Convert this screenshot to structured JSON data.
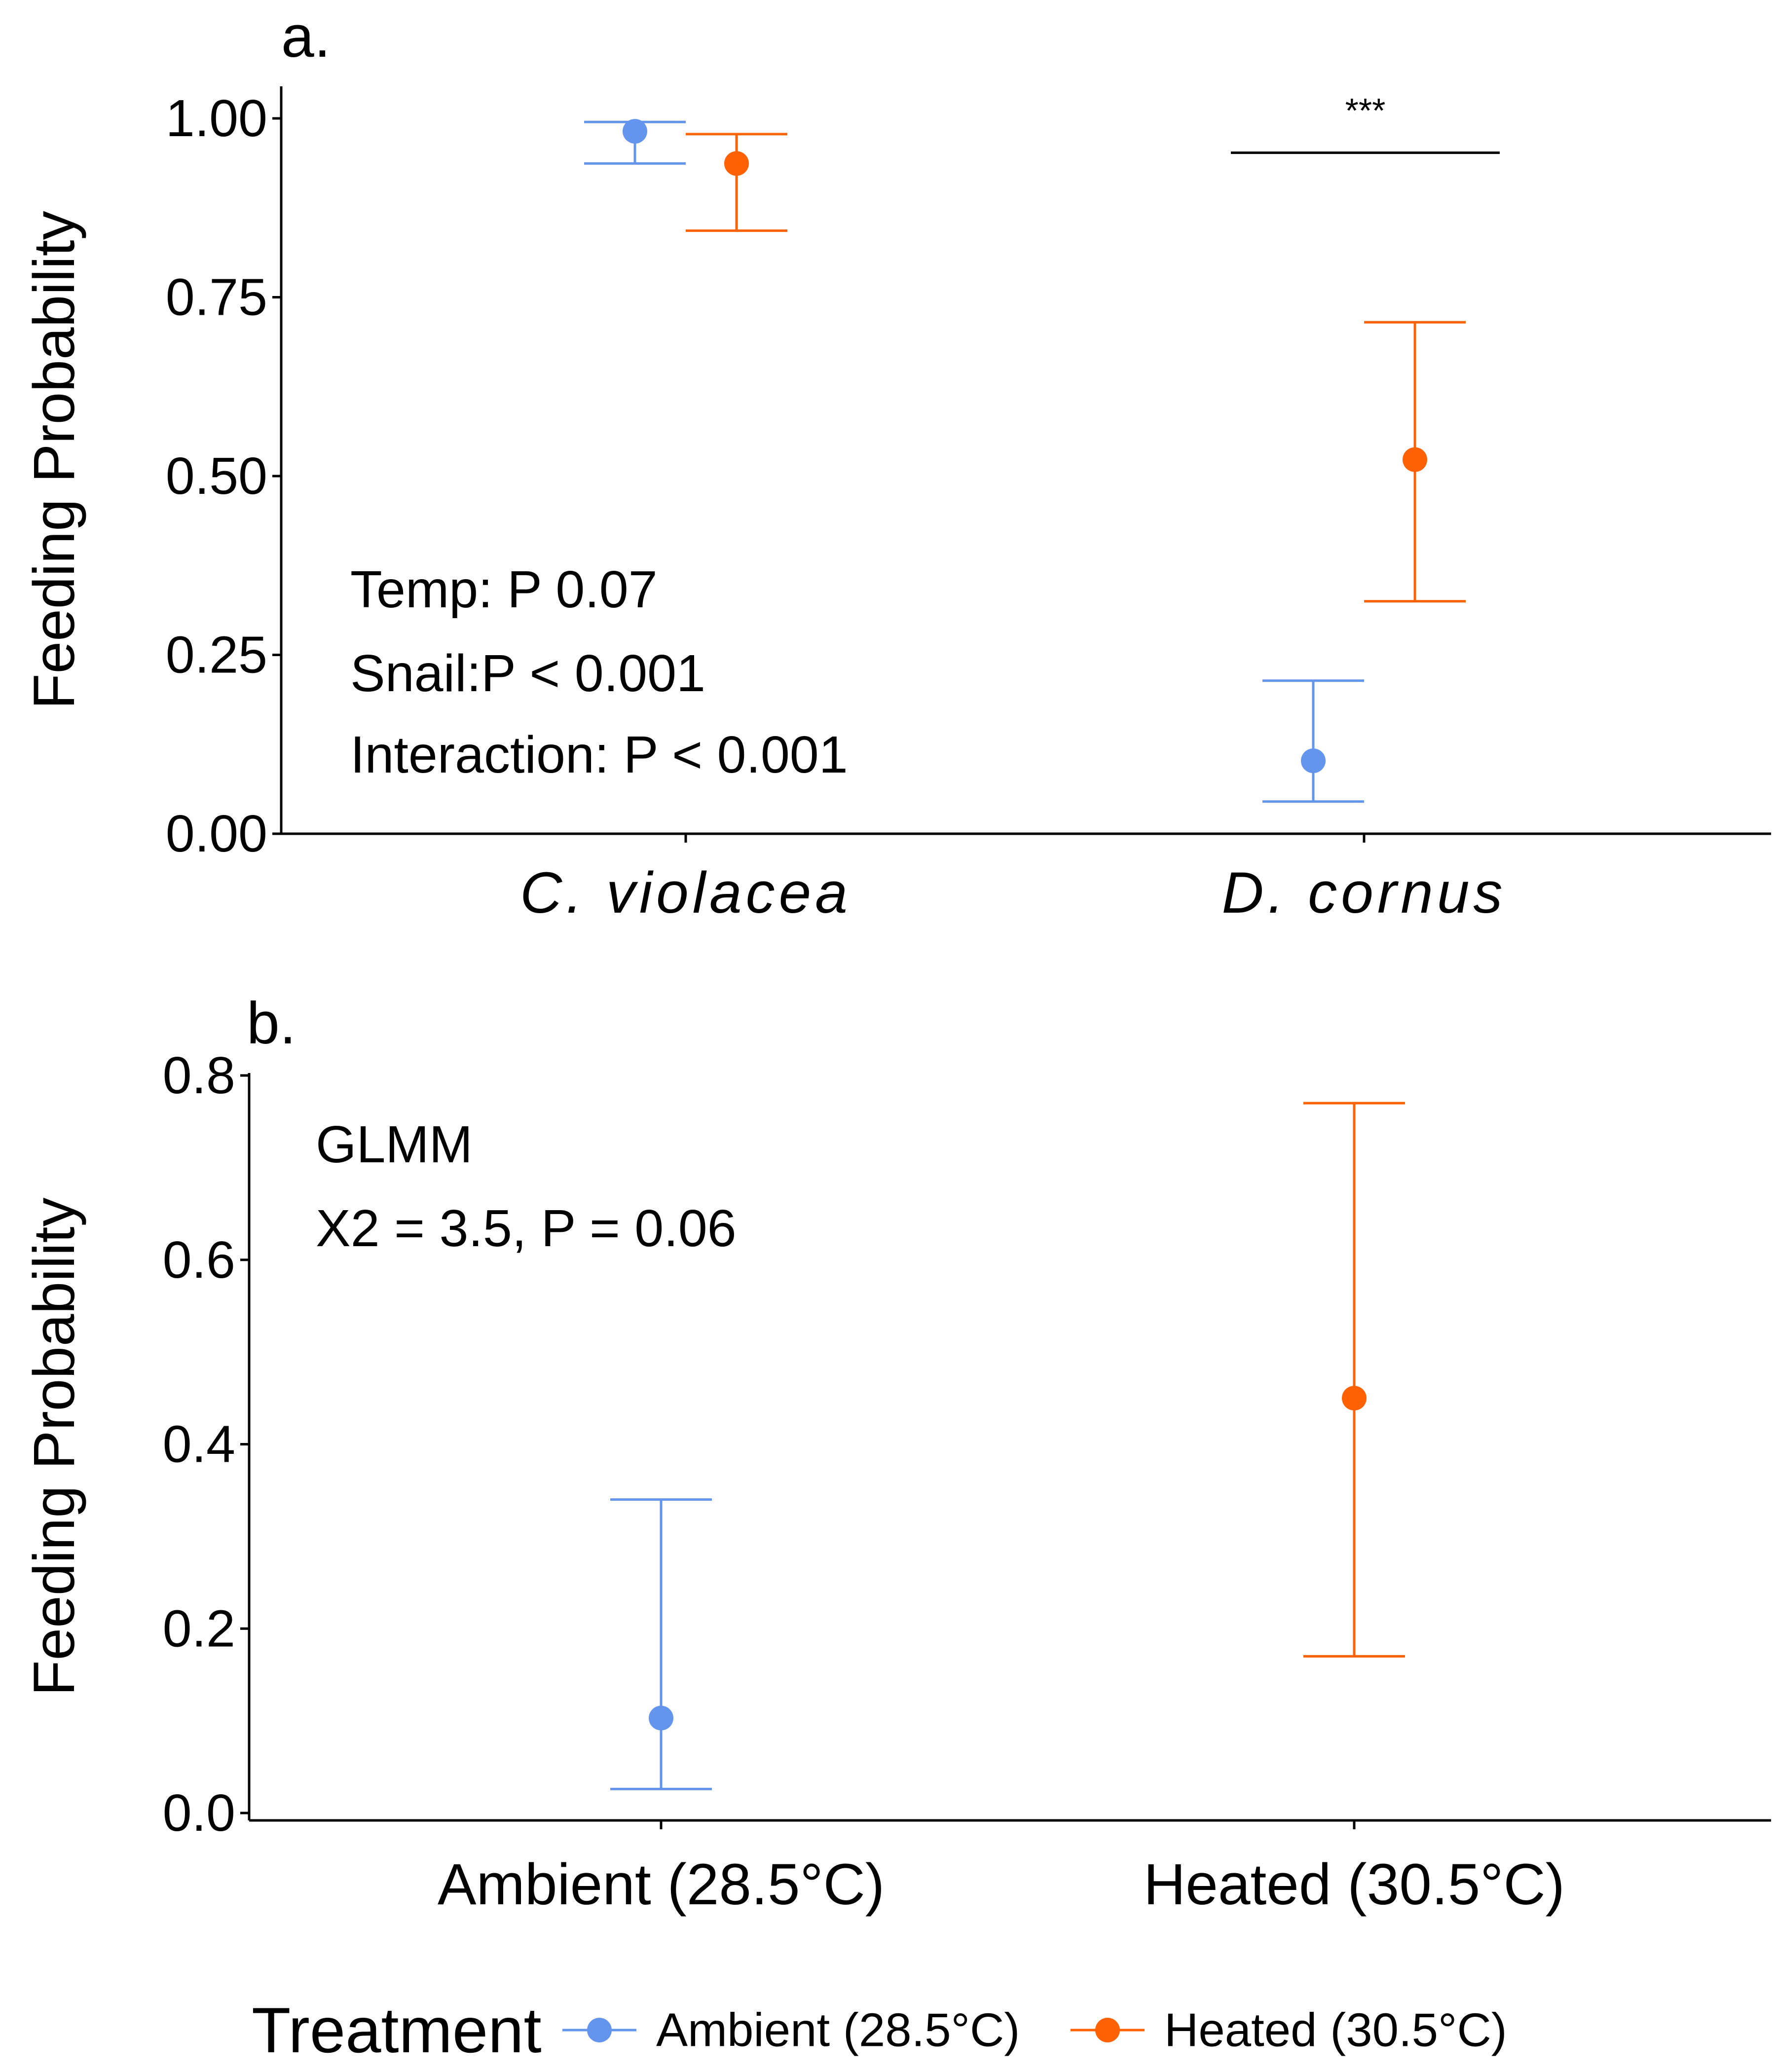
{
  "colors": {
    "ambient": "#6495ED",
    "heated": "#FF6103",
    "axis": "#000000"
  },
  "legend": {
    "title": "Treatment",
    "items": [
      {
        "label": "Ambient (28.5°C)",
        "color_key": "ambient"
      },
      {
        "label": "Heated (30.5°C)",
        "color_key": "heated"
      }
    ]
  },
  "chart_data": [
    {
      "panel_label": "a.",
      "type": "scatter",
      "ylabel": "Feeding Probability",
      "ylim": [
        0,
        1.0
      ],
      "yticks": [
        "0.00",
        "0.25",
        "0.50",
        "0.75",
        "1.00"
      ],
      "categories": [
        "C. violacea",
        "D. cornus"
      ],
      "category_style": "italic",
      "series": [
        {
          "name": "Ambient (28.5°C)",
          "color_key": "ambient",
          "points": [
            {
              "category": "C. violacea",
              "y": 0.982,
              "lower": 0.937,
              "upper": 0.995
            },
            {
              "category": "D. cornus",
              "y": 0.102,
              "lower": 0.045,
              "upper": 0.214
            }
          ]
        },
        {
          "name": "Heated (30.5°C)",
          "color_key": "heated",
          "points": [
            {
              "category": "C. violacea",
              "y": 0.937,
              "lower": 0.843,
              "upper": 0.978
            },
            {
              "category": "D. cornus",
              "y": 0.523,
              "lower": 0.325,
              "upper": 0.715
            }
          ]
        }
      ],
      "annotations": [
        "Temp: P 0.07",
        "Snail:P < 0.001",
        "Interaction: P < 0.001"
      ],
      "significance": {
        "category": "D. cornus",
        "label": "***",
        "y": 0.952
      },
      "grid": false
    },
    {
      "panel_label": "b.",
      "type": "scatter",
      "ylabel": "Feeding Probability",
      "ylim": [
        0,
        0.8
      ],
      "yticks": [
        "0.0",
        "0.2",
        "0.4",
        "0.6",
        "0.8"
      ],
      "categories": [
        "Ambient (28.5°C)",
        "Heated (30.5°C)"
      ],
      "category_style": "normal",
      "series": [
        {
          "name": "Ambient (28.5°C)",
          "color_key": "ambient",
          "points": [
            {
              "category": "Ambient (28.5°C)",
              "y": 0.103,
              "lower": 0.026,
              "upper": 0.34
            }
          ]
        },
        {
          "name": "Heated (30.5°C)",
          "color_key": "heated",
          "points": [
            {
              "category": "Heated (30.5°C)",
              "y": 0.45,
              "lower": 0.17,
              "upper": 0.77
            }
          ]
        }
      ],
      "annotations": [
        "GLMM",
        "X2 = 3.5, P = 0.06"
      ],
      "grid": false
    }
  ]
}
